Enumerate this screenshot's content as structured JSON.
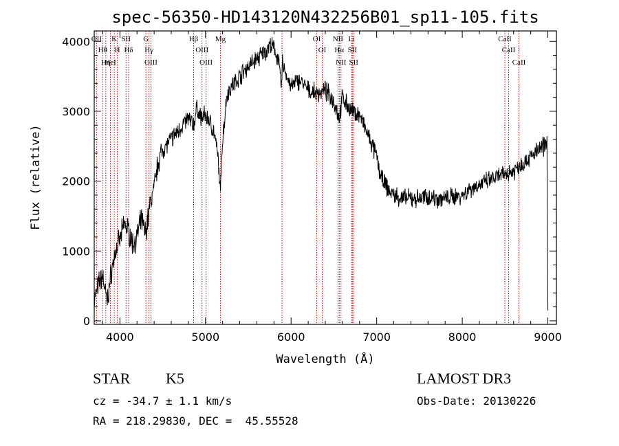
{
  "chart_data": {
    "type": "line",
    "title": "spec-56350-HD143120N432256B01_sp11-105.fits",
    "xlabel": "Wavelength (Å)",
    "ylabel": "Flux (relative)",
    "xlim": [
      3700,
      9100
    ],
    "ylim": [
      -50,
      4150
    ],
    "x_ticks": [
      4000,
      5000,
      6000,
      7000,
      8000,
      9000
    ],
    "y_ticks": [
      0,
      1000,
      2000,
      3000,
      4000
    ],
    "x_tick_labels": [
      "4000",
      "5000",
      "6000",
      "7000",
      "8000",
      "9000"
    ],
    "y_tick_labels": [
      "0",
      "1000",
      "2000",
      "3000",
      "4000"
    ],
    "grid": false,
    "series": [
      {
        "x": [
          3700,
          3760,
          3800,
          3850,
          3900,
          3950,
          4000,
          4050,
          4100,
          4150,
          4200,
          4250,
          4300,
          4350,
          4400,
          4450,
          4500,
          4600,
          4700,
          4800,
          4861,
          4900,
          4950,
          5000,
          5050,
          5100,
          5150,
          5175,
          5190,
          5250,
          5300,
          5400,
          5500,
          5600,
          5700,
          5750,
          5800,
          5850,
          5889,
          5900,
          5950,
          6000,
          6100,
          6200,
          6300,
          6400,
          6500,
          6563,
          6600,
          6700,
          6800,
          6900,
          7000,
          7050,
          7100,
          7150,
          7200,
          7300,
          7400,
          7500,
          7600,
          7700,
          7800,
          7900,
          8000,
          8100,
          8200,
          8300,
          8400,
          8500,
          8600,
          8700,
          8800,
          8900,
          8950,
          8990,
          9000
        ],
        "y": [
          300,
          550,
          650,
          250,
          700,
          1000,
          1150,
          1400,
          1300,
          1100,
          1200,
          1450,
          1250,
          1650,
          1900,
          2300,
          2450,
          2600,
          2750,
          2900,
          2800,
          3050,
          2900,
          2950,
          2850,
          2700,
          2300,
          1800,
          2450,
          3250,
          3350,
          3500,
          3650,
          3750,
          3850,
          3950,
          3900,
          3750,
          3350,
          3700,
          3500,
          3350,
          3450,
          3300,
          3250,
          3300,
          3150,
          2900,
          3200,
          3000,
          2950,
          2650,
          2350,
          2050,
          1950,
          1850,
          1800,
          1750,
          1750,
          1750,
          1780,
          1750,
          1750,
          1780,
          1800,
          1900,
          1950,
          2000,
          2050,
          2100,
          2150,
          2250,
          2350,
          2450,
          2500,
          2550,
          150
        ]
      }
    ],
    "line_markers": [
      {
        "wavelength": 3727,
        "label": "OII"
      },
      {
        "wavelength": 3798,
        "label": "Hθ"
      },
      {
        "wavelength": 3835,
        "label": "Hη"
      },
      {
        "wavelength": 3889,
        "label": "HeI"
      },
      {
        "wavelength": 3934,
        "label": "K"
      },
      {
        "wavelength": 3970,
        "label": "H"
      },
      {
        "wavelength": 4072,
        "label": "SII"
      },
      {
        "wavelength": 4102,
        "label": "Hδ"
      },
      {
        "wavelength": 4304,
        "label": "G"
      },
      {
        "wavelength": 4340,
        "label": "Hγ"
      },
      {
        "wavelength": 4363,
        "label": "OIII"
      },
      {
        "wavelength": 4861,
        "label": "Hβ"
      },
      {
        "wavelength": 4959,
        "label": "OIII"
      },
      {
        "wavelength": 5007,
        "label": "OIII"
      },
      {
        "wavelength": 5175,
        "label": "Mg"
      },
      {
        "wavelength": 5894,
        "label": ""
      },
      {
        "wavelength": 6300,
        "label": "OI"
      },
      {
        "wavelength": 6364,
        "label": "OI"
      },
      {
        "wavelength": 6548,
        "label": "NII"
      },
      {
        "wavelength": 6563,
        "label": "Hα"
      },
      {
        "wavelength": 6583,
        "label": "NII"
      },
      {
        "wavelength": 6707,
        "label": "Li"
      },
      {
        "wavelength": 6716,
        "label": "SII"
      },
      {
        "wavelength": 6731,
        "label": "SII"
      },
      {
        "wavelength": 8498,
        "label": "CaII"
      },
      {
        "wavelength": 8542,
        "label": "CaII"
      },
      {
        "wavelength": 8662,
        "label": "CaII"
      }
    ],
    "colors": {
      "spectrum": "#000000",
      "markers": "#cc0000",
      "axes": "#000000"
    }
  },
  "info": {
    "object_class": "STAR",
    "subclass": "K5",
    "survey": "LAMOST DR3",
    "cz": "cz = -34.7 ± 1.1 km/s",
    "obs_date": "Obs-Date: 20130226",
    "coords": "RA = 218.29830, DEC =  45.55528"
  }
}
